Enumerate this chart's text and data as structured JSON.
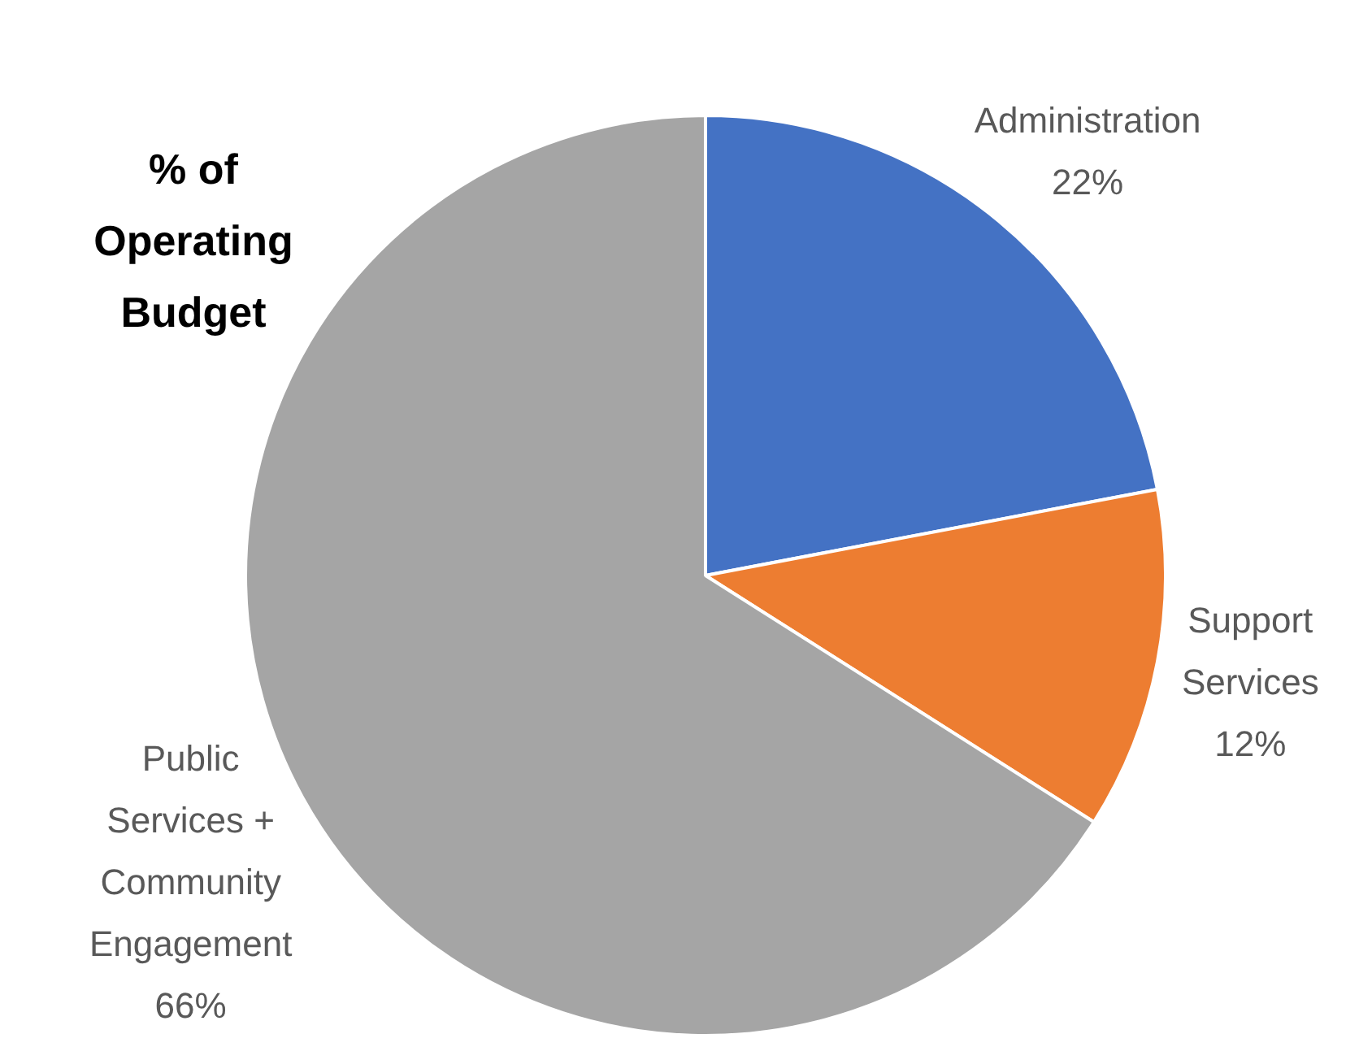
{
  "chart_data": {
    "type": "pie",
    "title": "% of Operating Budget",
    "categories": [
      "Administration",
      "Support Services",
      "Public Services + Community Engagement"
    ],
    "values": [
      22,
      12,
      66
    ],
    "colors": [
      "#4472c4",
      "#ed7d31",
      "#a5a5a5"
    ],
    "value_labels": [
      "22%",
      "12%",
      "66%"
    ],
    "legend": false
  }
}
